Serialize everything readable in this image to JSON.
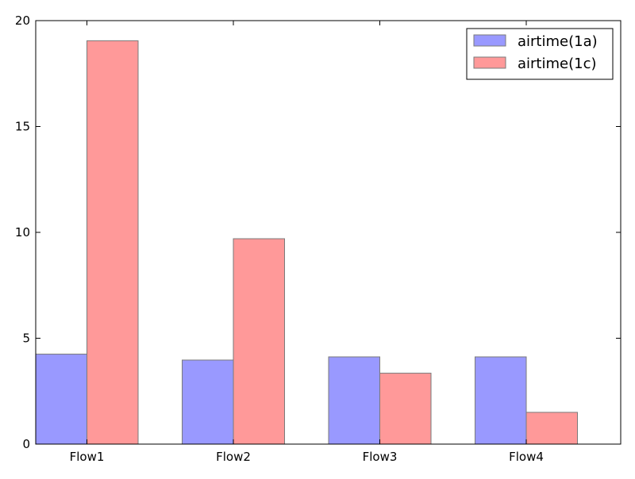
{
  "chart_data": {
    "type": "bar",
    "categories": [
      "Flow1",
      "Flow2",
      "Flow3",
      "Flow4"
    ],
    "series": [
      {
        "name": "airtime(1a)",
        "values": [
          4.25,
          3.97,
          4.12,
          4.12
        ],
        "color": "#9999ff"
      },
      {
        "name": "airtime(1c)",
        "values": [
          19.05,
          9.7,
          3.35,
          1.5
        ],
        "color": "#ff9999"
      }
    ],
    "yticks": [
      0,
      5,
      10,
      15,
      20
    ],
    "ylim": [
      0,
      20
    ],
    "grid": false,
    "legend_position": "top-right",
    "bar_edge_color": "#7a7a7a"
  }
}
